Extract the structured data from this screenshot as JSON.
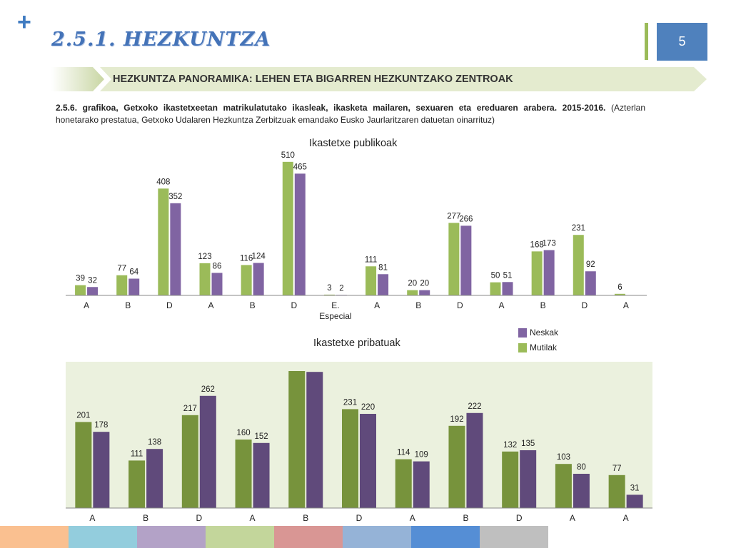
{
  "header": {
    "title": "2.5.1. HEZKUNTZA",
    "page_number": "5",
    "subtitle": "HEZKUNTZA PANORAMIKA: LEHEN ETA BIGARREN HEZKUNTZAKO ZENTROAK"
  },
  "caption": {
    "bold": "2.5.6. grafikoa, Getxoko ikastetxeetan matrikulatutako ikasleak, ikasketa mailaren, sexuaren eta ereduaren arabera. 2015-2016.",
    "normal": " (Azterlan honetarako prestatua, Getxoko Udalaren Hezkuntza Zerbitzuak emandako Eusko Jaurlaritzaren datuetan oinarrituz)"
  },
  "colors": {
    "accent_blue": "#4f81bd",
    "mutilak_light": "#9bbb59",
    "neskak_light": "#8064a2",
    "mutilak_dark": "#77933c",
    "neskak_dark": "#604a7b",
    "private_bg": "#ebf1de"
  },
  "legend": {
    "neskak": "Neskak",
    "mutilak": "Mutilak"
  },
  "chart_data": [
    {
      "type": "bar",
      "title": "Ikastetxe publikoak",
      "categories": [
        "A",
        "B",
        "D",
        "A",
        "B",
        "D",
        "E. Especial",
        "A",
        "B",
        "D",
        "A",
        "B",
        "D",
        "A"
      ],
      "series": [
        {
          "name": "Mutilak",
          "values": [
            39,
            77,
            408,
            123,
            116,
            510,
            3,
            111,
            20,
            277,
            50,
            168,
            231,
            6
          ]
        },
        {
          "name": "Neskak",
          "values": [
            32,
            64,
            352,
            86,
            124,
            465,
            2,
            81,
            20,
            266,
            51,
            173,
            92,
            null
          ]
        }
      ],
      "grid": false
    },
    {
      "type": "bar",
      "title": "Ikastetxe pribatuak",
      "categories": [
        "A",
        "B",
        "D",
        "A",
        "B",
        "D",
        "A",
        "B",
        "D",
        "A",
        "A"
      ],
      "series": [
        {
          "name": "Mutilak",
          "values": [
            201,
            111,
            217,
            160,
            320,
            231,
            114,
            192,
            132,
            103,
            77
          ]
        },
        {
          "name": "Neskak",
          "values": [
            178,
            138,
            262,
            152,
            318,
            220,
            109,
            222,
            135,
            80,
            31
          ]
        }
      ],
      "value_labels": [
        [
          "201",
          "111",
          "217",
          "160",
          "",
          "231",
          "114",
          "192",
          "132",
          "103",
          "77"
        ],
        [
          "178",
          "138",
          "262",
          "152",
          "",
          "220",
          "109",
          "222",
          "135",
          "80",
          "31"
        ]
      ],
      "grid": false
    }
  ],
  "footer_colors": [
    "#fac090",
    "#93cddd",
    "#b3a2c7",
    "#c3d69b",
    "#d99694",
    "#95b3d7",
    "#558ed5",
    "#bfbfbf"
  ]
}
